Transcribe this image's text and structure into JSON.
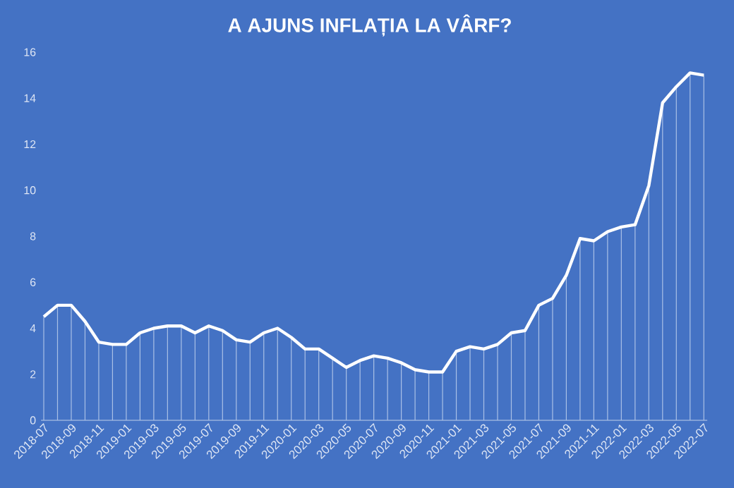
{
  "chart_data": {
    "type": "line",
    "title": "A AJUNS INFLAȚIA LA VÂRF?",
    "categories": [
      "2018-07",
      null,
      "2018-09",
      null,
      "2018-11",
      null,
      "2019-01",
      null,
      "2019-03",
      null,
      "2019-05",
      null,
      "2019-07",
      null,
      "2019-09",
      null,
      "2019-11",
      null,
      "2020-01",
      null,
      "2020-03",
      null,
      "2020-05",
      null,
      "2020-07",
      null,
      "2020-09",
      null,
      "2020-11",
      null,
      "2021-01",
      null,
      "2021-03",
      null,
      "2021-05",
      null,
      "2021-07",
      null,
      "2021-09",
      null,
      "2021-11",
      null,
      "2022-01",
      null,
      "2022-03",
      null,
      "2022-05",
      null,
      "2022-07"
    ],
    "series": [
      {
        "type": "bar",
        "color": "#aac0e6",
        "values": [
          4.5,
          5.0,
          5.0,
          4.3,
          3.4,
          3.3,
          3.3,
          3.8,
          4.0,
          4.1,
          4.1,
          3.8,
          4.1,
          3.9,
          3.5,
          3.4,
          3.8,
          4.0,
          3.6,
          3.1,
          3.1,
          2.7,
          2.3,
          2.6,
          2.8,
          2.7,
          2.5,
          2.2,
          2.1,
          2.1,
          3.0,
          3.2,
          3.1,
          3.3,
          3.8,
          3.9,
          5.0,
          5.3,
          6.3,
          7.9,
          7.8,
          8.2,
          8.4,
          8.5,
          10.2,
          13.8,
          14.5,
          15.1,
          15.0
        ]
      },
      {
        "color": "#ffffff",
        "values": [
          4.5,
          5.0,
          5.0,
          4.3,
          3.4,
          3.3,
          3.3,
          3.8,
          4.0,
          4.1,
          4.1,
          3.8,
          4.1,
          3.9,
          3.5,
          3.4,
          3.8,
          4.0,
          3.6,
          3.1,
          3.1,
          2.7,
          2.3,
          2.6,
          2.8,
          2.7,
          2.5,
          2.2,
          2.1,
          2.1,
          3.0,
          3.2,
          3.1,
          3.3,
          3.8,
          3.9,
          5.0,
          5.3,
          6.3,
          7.9,
          7.8,
          8.2,
          8.4,
          8.5,
          10.2,
          13.8,
          14.5,
          15.1,
          15.0
        ]
      }
    ],
    "marker": "none",
    "ylim": [
      0,
      16
    ],
    "yticks": [
      0,
      2,
      4,
      6,
      8,
      10,
      12,
      14,
      16
    ]
  }
}
